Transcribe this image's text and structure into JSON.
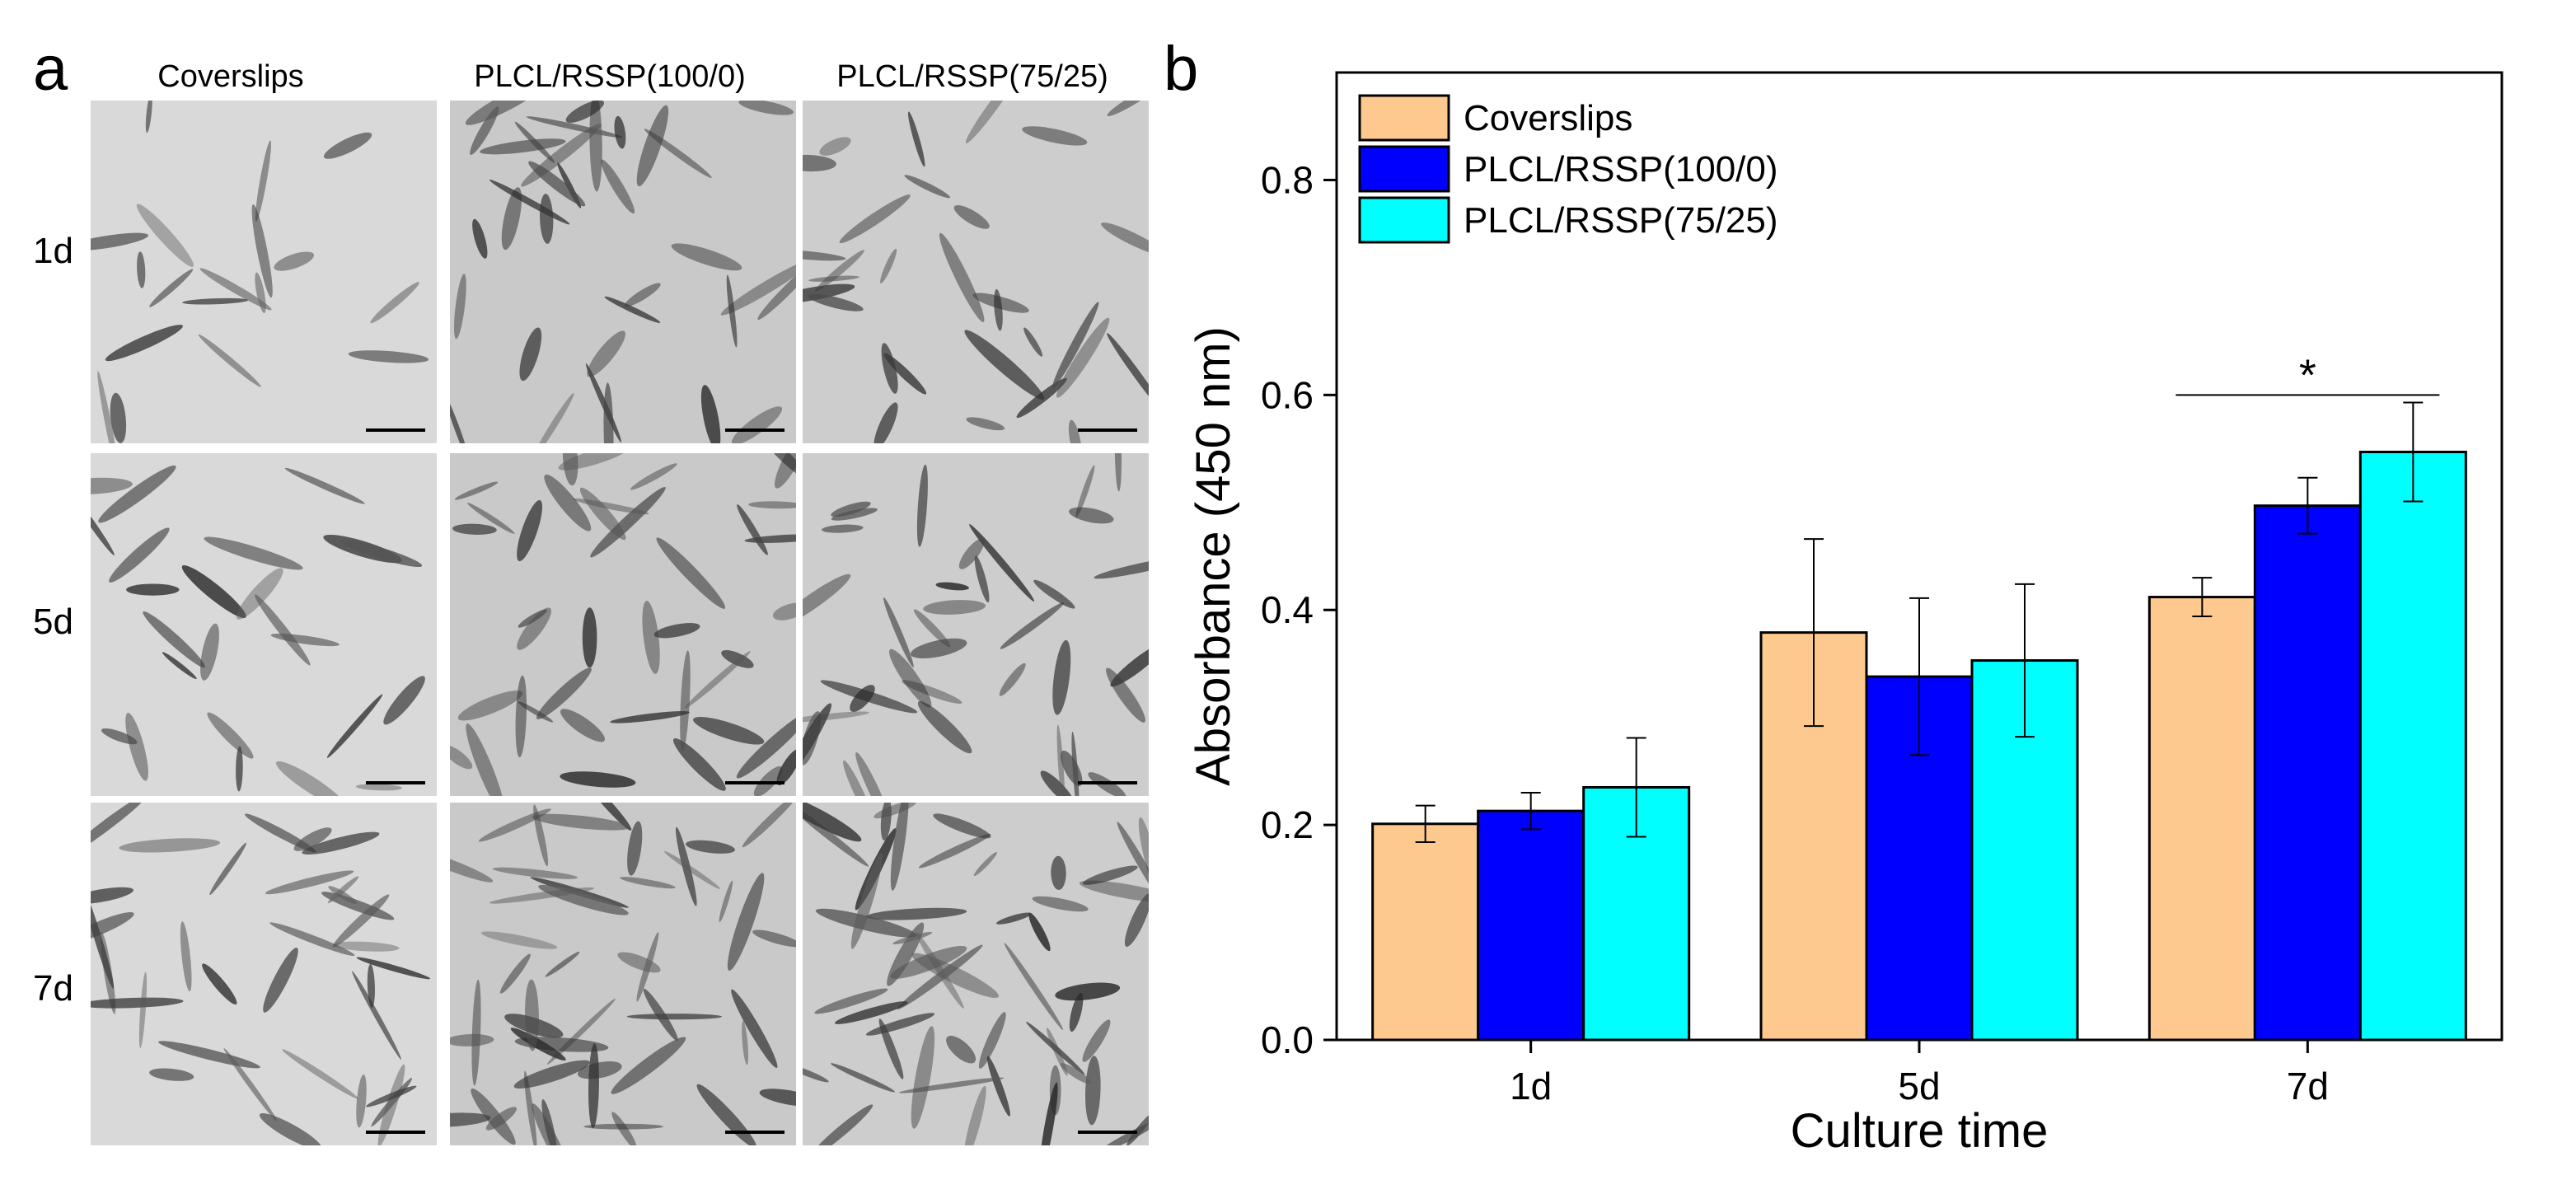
{
  "panel_a": {
    "letter": "a",
    "columns": [
      "Coverslips",
      "PLCL/RSSP(100/0)",
      "PLCL/RSSP(75/25)"
    ],
    "rows": [
      "1d",
      "5d",
      "7d"
    ]
  },
  "panel_b": {
    "letter": "b"
  },
  "chart_data": {
    "type": "bar",
    "title": "",
    "xlabel": "Culture time",
    "ylabel": "Absorbance (450 nm)",
    "categories": [
      "1d",
      "5d",
      "7d"
    ],
    "ylim": [
      0,
      0.9
    ],
    "yticks": [
      0.0,
      0.2,
      0.4,
      0.6,
      0.8
    ],
    "ytick_labels": [
      "0.0",
      "0.2",
      "0.4",
      "0.6",
      "0.8"
    ],
    "grid": false,
    "legend_position": "top-left",
    "series": [
      {
        "name": "Coverslips",
        "color": "#fdc98f",
        "values": [
          0.201,
          0.379,
          0.412
        ],
        "errors": [
          0.017,
          0.087,
          0.018
        ]
      },
      {
        "name": "PLCL/RSSP(100/0)",
        "color": "#0000ff",
        "values": [
          0.213,
          0.338,
          0.497
        ],
        "errors": [
          0.017,
          0.073,
          0.026
        ]
      },
      {
        "name": "PLCL/RSSP(75/25)",
        "color": "#00ffff",
        "values": [
          0.235,
          0.353,
          0.547
        ],
        "errors": [
          0.046,
          0.071,
          0.046
        ]
      }
    ],
    "annotations": [
      {
        "text": "*",
        "category": "7d",
        "y": 0.6
      }
    ]
  }
}
